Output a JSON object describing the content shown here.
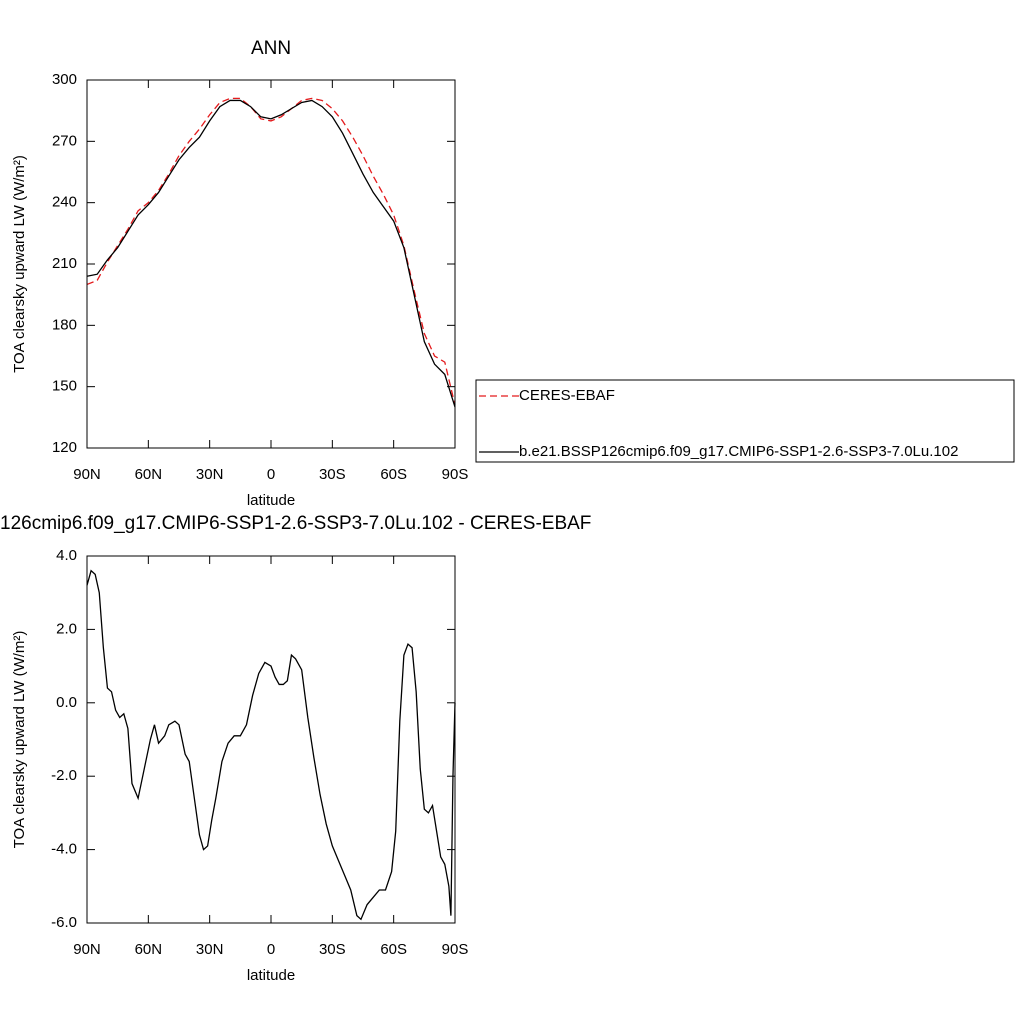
{
  "chart_data": [
    {
      "type": "line",
      "title": "ANN",
      "xlabel": "latitude",
      "ylabel": "TOA clearsky upward LW (W/m²)",
      "x": [
        90,
        85,
        80,
        75,
        70,
        65,
        60,
        55,
        50,
        45,
        40,
        35,
        30,
        25,
        20,
        15,
        10,
        5,
        0,
        -5,
        -10,
        -15,
        -20,
        -25,
        -30,
        -35,
        -40,
        -45,
        -50,
        -55,
        -60,
        -65,
        -70,
        -75,
        -80,
        -85,
        -90
      ],
      "xlim": [
        90,
        -90
      ],
      "xticks": [
        {
          "value": 90,
          "label": "90N"
        },
        {
          "value": 60,
          "label": "60N"
        },
        {
          "value": 30,
          "label": "30N"
        },
        0,
        {
          "value": -30,
          "label": "30S"
        },
        {
          "value": -60,
          "label": "60S"
        },
        {
          "value": -90,
          "label": "90S"
        }
      ],
      "ylim": [
        120,
        300
      ],
      "yticks": [
        120,
        150,
        180,
        210,
        240,
        270,
        300
      ],
      "legend": "right",
      "series": [
        {
          "name": "CERES-EBAF",
          "color": "#e41a1c",
          "line_style": "dashed",
          "values": [
            200,
            202,
            211,
            219,
            227,
            236,
            240,
            246,
            254,
            263,
            270,
            276,
            283,
            289,
            291,
            291,
            287,
            281,
            280,
            282,
            286,
            290,
            291,
            290,
            286,
            280,
            272,
            263,
            253,
            244,
            234,
            219,
            197,
            176,
            165,
            162,
            141
          ]
        },
        {
          "name": "b.e21.BSSP126cmip6.f09_g17.CMIP6-SSP1-2.6-SSP3-7.0Lu.102",
          "color": "#000000",
          "line_style": "solid",
          "values": [
            204,
            205,
            212,
            218,
            226,
            234,
            239,
            245,
            253,
            261,
            267,
            272,
            280,
            287,
            290,
            290,
            287,
            282,
            281,
            283,
            286,
            289,
            290,
            287,
            282,
            274,
            264,
            254,
            245,
            238,
            231,
            218,
            195,
            172,
            161,
            156,
            140
          ]
        }
      ]
    },
    {
      "type": "line",
      "title": "126cmip6.f09_g17.CMIP6-SSP1-2.6-SSP3-7.0Lu.102 - CERES-EBAF",
      "xlabel": "latitude",
      "ylabel": "TOA clearsky upward LW (W/m²)",
      "x": [
        90,
        88,
        86,
        84,
        82,
        80,
        78,
        76,
        74,
        72,
        70,
        68,
        65,
        62,
        59,
        57,
        55,
        52,
        50,
        47,
        45,
        42,
        40,
        37,
        35,
        33,
        31,
        29,
        27,
        24,
        21,
        18,
        15,
        12,
        9,
        6,
        3,
        0,
        -2,
        -4,
        -6,
        -8,
        -10,
        -12,
        -15,
        -18,
        -21,
        -24,
        -27,
        -30,
        -33,
        -36,
        -39,
        -42,
        -44,
        -47,
        -50,
        -53,
        -56,
        -59,
        -61,
        -63,
        -65,
        -67,
        -69,
        -71,
        -73,
        -75,
        -77,
        -79,
        -81,
        -83,
        -85,
        -87,
        -88,
        -89,
        -90
      ],
      "xlim": [
        90,
        -90
      ],
      "xticks": [
        {
          "value": 90,
          "label": "90N"
        },
        {
          "value": 60,
          "label": "60N"
        },
        {
          "value": 30,
          "label": "30N"
        },
        0,
        {
          "value": -30,
          "label": "30S"
        },
        {
          "value": -60,
          "label": "60S"
        },
        {
          "value": -90,
          "label": "90S"
        }
      ],
      "ylim": [
        -6,
        4
      ],
      "yticks": [
        {
          "value": -6,
          "label": "-6.0"
        },
        {
          "value": -4,
          "label": "-4.0"
        },
        {
          "value": -2,
          "label": "-2.0"
        },
        {
          "value": 0,
          "label": "0.0"
        },
        {
          "value": 2,
          "label": "2.0"
        },
        {
          "value": 4,
          "label": "4.0"
        }
      ],
      "series": [
        {
          "color": "#000000",
          "line_style": "solid",
          "values": [
            3.2,
            3.6,
            3.5,
            3.0,
            1.5,
            0.4,
            0.3,
            -0.2,
            -0.4,
            -0.3,
            -0.7,
            -2.2,
            -2.6,
            -1.8,
            -1.0,
            -0.6,
            -1.1,
            -0.9,
            -0.6,
            -0.5,
            -0.6,
            -1.4,
            -1.6,
            -2.8,
            -3.6,
            -4.0,
            -3.9,
            -3.2,
            -2.6,
            -1.6,
            -1.1,
            -0.9,
            -0.9,
            -0.6,
            0.2,
            0.8,
            1.1,
            1.0,
            0.7,
            0.5,
            0.5,
            0.6,
            1.3,
            1.2,
            0.9,
            -0.4,
            -1.5,
            -2.5,
            -3.3,
            -3.9,
            -4.3,
            -4.7,
            -5.1,
            -5.8,
            -5.9,
            -5.5,
            -5.3,
            -5.1,
            -5.1,
            -4.6,
            -3.5,
            -0.5,
            1.3,
            1.6,
            1.5,
            0.3,
            -1.8,
            -2.9,
            -3.0,
            -2.8,
            -3.5,
            -4.2,
            -4.4,
            -5.0,
            -5.8,
            -2.0,
            0.0
          ]
        }
      ]
    }
  ]
}
